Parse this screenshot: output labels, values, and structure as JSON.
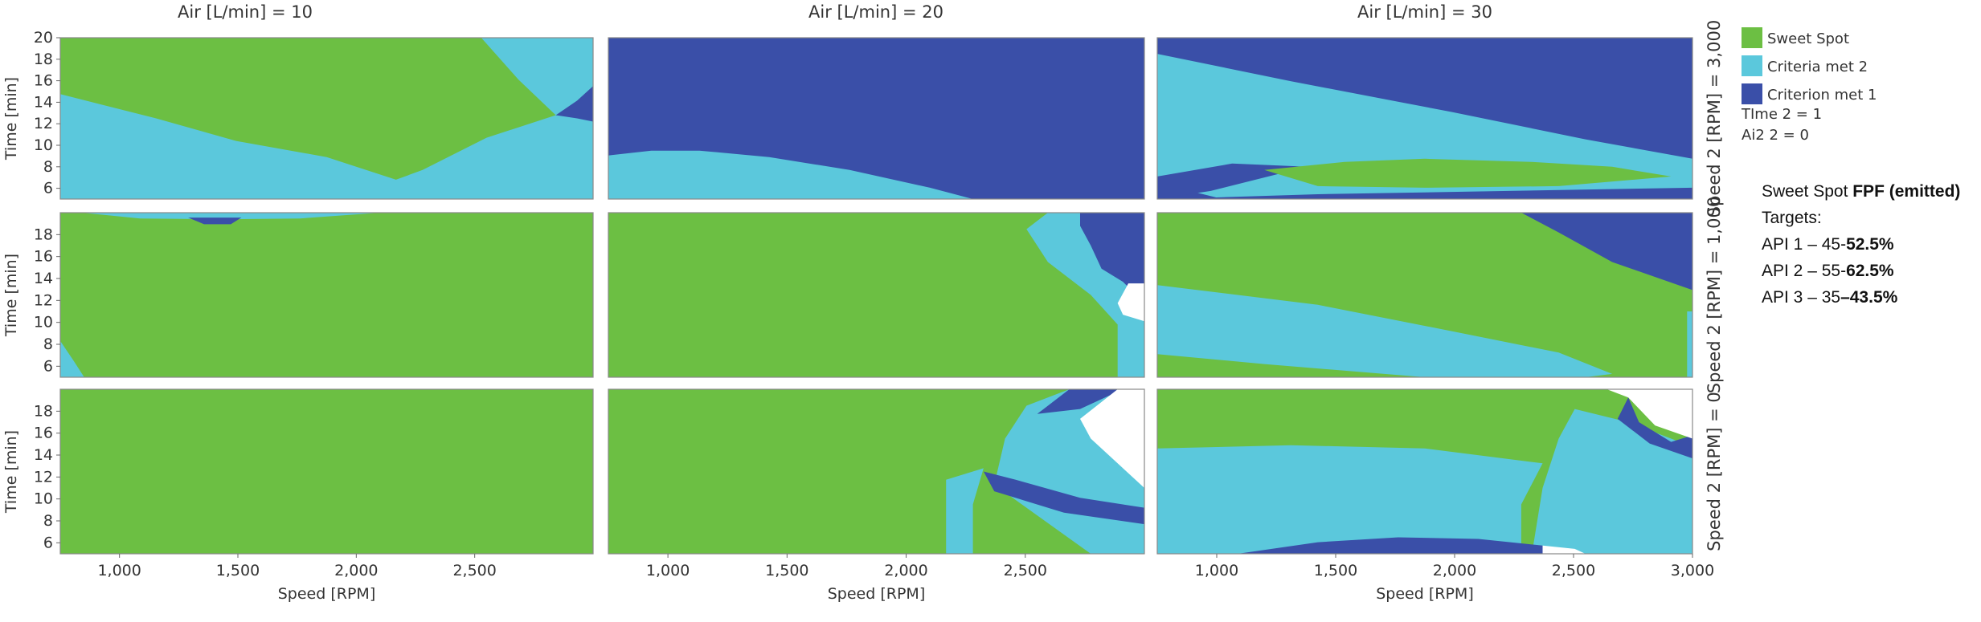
{
  "chart_data": {
    "type": "heatmap",
    "description_free": true,
    "columns": [
      {
        "title": "Air [L/min] = 10"
      },
      {
        "title": "Air [L/min] = 20"
      },
      {
        "title": "Air [L/min] = 30"
      }
    ],
    "rows": [
      {
        "label": "Speed 2 [RPM] = 3,000"
      },
      {
        "label": "Speed 2 [RPM] = 1,000"
      },
      {
        "label": "Speed 2 [RPM] = 0"
      }
    ],
    "xlabel": "Speed [RPM]",
    "ylabel": "Time [min]",
    "xlim": [
      750,
      3000
    ],
    "x_ticks": [
      "1,000",
      "1,500",
      "2,000",
      "2,500",
      "3,000"
    ],
    "x_tick_values": [
      1000,
      1500,
      2000,
      2500,
      3000
    ],
    "row_ylims": [
      [
        5,
        20
      ],
      [
        5,
        20
      ],
      [
        5,
        20
      ]
    ],
    "y_ticks_top": [
      "20",
      "18",
      "16",
      "14",
      "12",
      "10",
      "8",
      "6"
    ],
    "y_ticks_top_values": [
      20,
      18,
      16,
      14,
      12,
      10,
      8,
      6
    ],
    "y_ticks_lower": [
      "18",
      "16",
      "14",
      "12",
      "10",
      "8",
      "6"
    ],
    "y_ticks_lower_values": [
      18,
      16,
      14,
      12,
      10,
      8,
      6
    ],
    "legend": [
      {
        "label": "Sweet Spot",
        "color": "#6cbf43"
      },
      {
        "label": "Criteria met 2",
        "color": "#5bc8dc"
      },
      {
        "label": "Criterion met 1",
        "color": "#3a4fa8"
      }
    ],
    "legend_notes": [
      "TIme 2 = 1",
      "Ai2 2 = 0"
    ],
    "colors": {
      "none": "#ffffff",
      "frame": "#888888"
    }
  },
  "notes": {
    "title_plain": "Sweet Spot ",
    "title_bold": "FPF (emitted)",
    "targets_label": "Targets:",
    "lines": [
      {
        "plain": "API 1 – 45-",
        "bold": "52.5%"
      },
      {
        "plain": "API 2 – 55-",
        "bold": "62.5%"
      },
      {
        "plain": "API 3 – 35",
        "bold": "–43.5%"
      }
    ]
  }
}
